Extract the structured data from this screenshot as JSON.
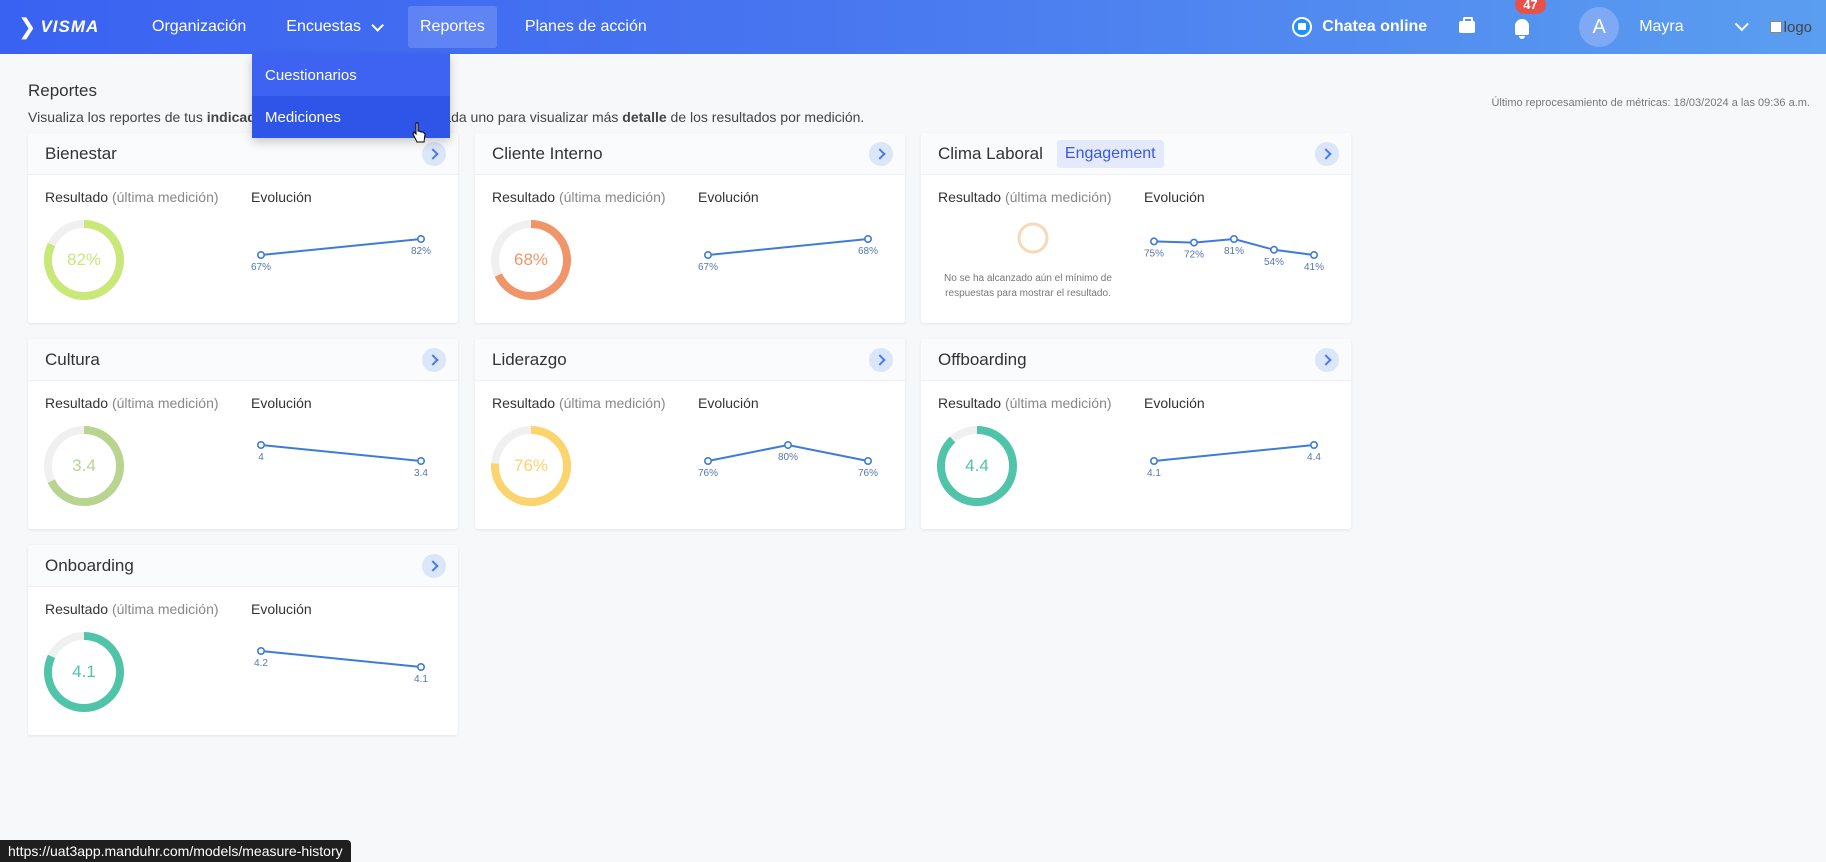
{
  "nav": {
    "logo": "VISMA",
    "items": [
      "Organización",
      "Encuestas",
      "Reportes",
      "Planes de acción"
    ],
    "chat_label": "Chatea online",
    "notification_count": "47",
    "avatar_initial": "A",
    "user_name": "Mayra",
    "logo_alt": "logo"
  },
  "dropdown": {
    "items": [
      "Cuestionarios",
      "Mediciones"
    ]
  },
  "page": {
    "title": "Reportes",
    "desc_1": "Visualiza los reportes de tus ",
    "desc_bold_1": "indicado",
    "desc_2": "cada uno para visualizar más ",
    "desc_bold_2": "detalle",
    "desc_3": " de los resultados por medición.",
    "reprocess": "Último reprocesamiento de métricas: 18/03/2024 a las 09:36 a.m."
  },
  "labels": {
    "result": "Resultado",
    "result_muted": "(última medición)",
    "evolution": "Evolución",
    "no_data": "No se ha alcanzado aún el mínimo de respuestas para mostrar el resultado."
  },
  "cards": [
    {
      "title": "Bienestar",
      "tag": "",
      "result": "82%",
      "fraction": 0.82,
      "color": "#c8e87a",
      "points": [
        "67%",
        "82%"
      ],
      "values": [
        67,
        82
      ]
    },
    {
      "title": "Cliente Interno",
      "tag": "",
      "result": "68%",
      "fraction": 0.68,
      "color": "#f0956a",
      "points": [
        "67%",
        "68%"
      ],
      "values": [
        67,
        68
      ]
    },
    {
      "title": "Clima Laboral",
      "tag": "Engagement",
      "result": "",
      "fraction": 0,
      "color": "#f5d9b8",
      "points": [
        "75%",
        "72%",
        "81%",
        "54%",
        "41%"
      ],
      "values": [
        75,
        72,
        81,
        54,
        41
      ]
    },
    {
      "title": "Cultura",
      "tag": "",
      "result": "3.4",
      "fraction": 0.68,
      "color": "#b8d490",
      "points": [
        "4",
        "3.4"
      ],
      "values": [
        4,
        3.4
      ]
    },
    {
      "title": "Liderazgo",
      "tag": "",
      "result": "76%",
      "fraction": 0.76,
      "color": "#fbd46e",
      "points": [
        "76%",
        "80%",
        "76%"
      ],
      "values": [
        76,
        80,
        76
      ]
    },
    {
      "title": "Offboarding",
      "tag": "",
      "result": "4.4",
      "fraction": 0.88,
      "color": "#4fc4a8",
      "points": [
        "4.1",
        "4.4"
      ],
      "values": [
        4.1,
        4.4
      ]
    },
    {
      "title": "Onboarding",
      "tag": "",
      "result": "4.1",
      "fraction": 0.82,
      "color": "#4fc4a8",
      "points": [
        "4.2",
        "4.1"
      ],
      "values": [
        4.2,
        4.1
      ]
    }
  ],
  "statusbar": "https://uat3app.manduhr.com/models/measure-history"
}
